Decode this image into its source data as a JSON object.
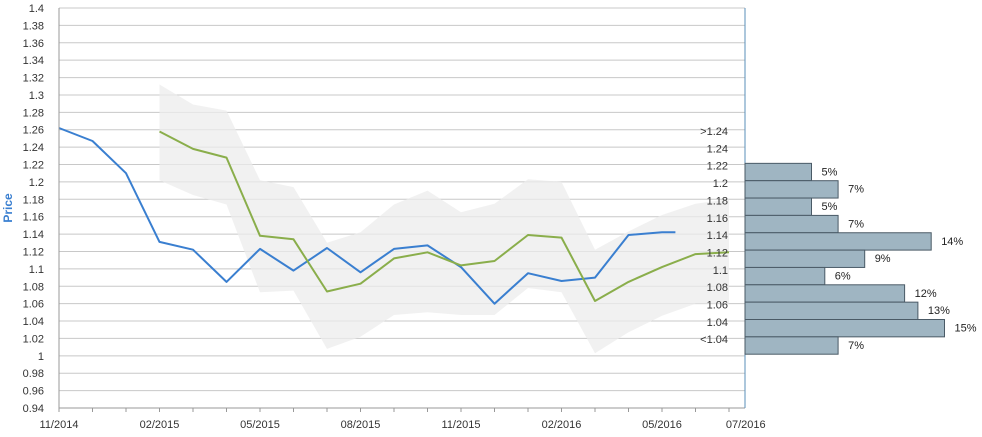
{
  "chart_data": {
    "type": "line",
    "ylabel": "Price",
    "ylim": [
      0.94,
      1.4
    ],
    "yticks": [
      "1.4",
      "1.38",
      "1.36",
      "1.34",
      "1.32",
      "1.3",
      "1.28",
      "1.26",
      "1.24",
      "1.22",
      "1.2",
      "1.18",
      "1.16",
      "1.14",
      "1.12",
      "1.1",
      "1.08",
      "1.06",
      "1.04",
      "1.02",
      "1",
      "0.98",
      "0.96",
      "0.94"
    ],
    "xticks": [
      "11/2014",
      "02/2015",
      "05/2015",
      "08/2015",
      "11/2015",
      "02/2016",
      "05/2016",
      "07/2016"
    ],
    "grid": true,
    "colors": {
      "history": "#3a7fd0",
      "forecast": "#8aae4b",
      "band": "#ececec",
      "bars": "#9fb5c2",
      "bar_border": "#4a5a66",
      "grid": "#c8c8c8",
      "axis": "#5a8fb8"
    },
    "series": [
      {
        "key": "history",
        "x": [
          0,
          1,
          2,
          3,
          4,
          5,
          6,
          7,
          8,
          9,
          10,
          11,
          12,
          13,
          14,
          15,
          16,
          17,
          18,
          18.4
        ],
        "values": [
          1.262,
          1.247,
          1.21,
          1.131,
          1.122,
          1.085,
          1.123,
          1.098,
          1.124,
          1.096,
          1.123,
          1.127,
          1.102,
          1.06,
          1.095,
          1.086,
          1.09,
          1.139,
          1.142,
          1.142
        ]
      },
      {
        "key": "forecast",
        "x": [
          3,
          4,
          5,
          6,
          7,
          8,
          9,
          10,
          11,
          12,
          13,
          14,
          15,
          16,
          17,
          18,
          19,
          20
        ],
        "values": [
          1.258,
          1.238,
          1.228,
          1.138,
          1.134,
          1.074,
          1.083,
          1.112,
          1.119,
          1.104,
          1.109,
          1.139,
          1.136,
          1.063,
          1.085,
          1.102,
          1.117,
          1.119
        ]
      }
    ],
    "band": {
      "x": [
        3,
        4,
        5,
        6,
        7,
        8,
        9,
        10,
        11,
        12,
        13,
        14,
        15,
        16,
        17,
        18,
        19,
        20
      ],
      "upper": [
        1.312,
        1.289,
        1.282,
        1.202,
        1.194,
        1.13,
        1.142,
        1.174,
        1.19,
        1.165,
        1.175,
        1.203,
        1.2,
        1.122,
        1.143,
        1.162,
        1.175,
        1.18
      ],
      "lower": [
        1.202,
        1.185,
        1.174,
        1.073,
        1.075,
        1.008,
        1.022,
        1.047,
        1.05,
        1.047,
        1.047,
        1.078,
        1.073,
        1.003,
        1.027,
        1.046,
        1.06,
        1.06
      ]
    },
    "histogram": {
      "labels": [
        ">1.24",
        "1.24",
        "1.22",
        "1.2",
        "1.18",
        "1.16",
        "1.14",
        "1.12",
        "1.1",
        "1.08",
        "1.06",
        "1.04",
        "<1.04"
      ],
      "values": [
        null,
        5,
        7,
        5,
        7,
        14,
        9,
        6,
        12,
        13,
        15,
        7,
        null
      ],
      "value_labels": [
        "",
        "5%",
        "7%",
        "5%",
        "7%",
        "14%",
        "9%",
        "6%",
        "12%",
        "13%",
        "15%",
        "7%",
        ""
      ]
    }
  }
}
